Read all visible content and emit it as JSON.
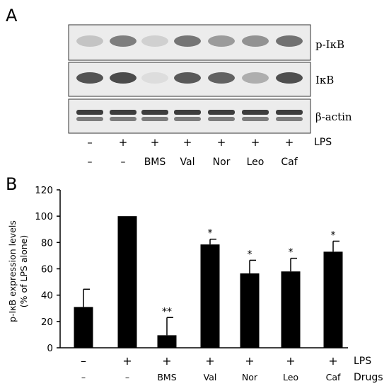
{
  "panel_a": {
    "label": "A",
    "blots": [
      {
        "name": "p-IκB",
        "bands": [
          0.18,
          0.55,
          0.12,
          0.6,
          0.4,
          0.45,
          0.62
        ]
      },
      {
        "name": "IκB",
        "bands": [
          0.78,
          0.82,
          0.05,
          0.75,
          0.7,
          0.3,
          0.8
        ]
      },
      {
        "name": "β-actin",
        "bands": [
          0.85,
          0.85,
          0.85,
          0.85,
          0.85,
          0.85,
          0.85
        ]
      }
    ],
    "lps_row": [
      "–",
      "+",
      "+",
      "+",
      "+",
      "+",
      "+"
    ],
    "drug_row": [
      "–",
      "–",
      "BMS",
      "Val",
      "Nor",
      "Leo",
      "Caf"
    ],
    "lps_label": "LPS"
  },
  "chart_data": {
    "type": "bar",
    "panel_label": "B",
    "title": "",
    "ylabel_line1": "p-IκB expression levels",
    "ylabel_line2": "(% of LPS alone)",
    "ylim": [
      0,
      120
    ],
    "yticks": [
      "0",
      "20",
      "40",
      "60",
      "80",
      "100",
      "120"
    ],
    "categories": [
      "–/–",
      "+/–",
      "+/BMS",
      "+/Val",
      "+/Nor",
      "+/Leo",
      "+/Caf"
    ],
    "values": [
      31,
      100,
      9.5,
      78.5,
      56.5,
      58,
      73
    ],
    "errors": [
      13.5,
      0,
      13.5,
      4,
      10,
      10,
      8
    ],
    "significance": [
      "",
      "",
      "**",
      "*",
      "*",
      "*",
      "*"
    ],
    "lps_row": [
      "–",
      "+",
      "+",
      "+",
      "+",
      "+",
      "+"
    ],
    "drug_row": [
      "–",
      "–",
      "BMS",
      "Val",
      "Nor",
      "Leo",
      "Caf"
    ],
    "lps_label": "LPS",
    "drugs_label": "Drugs",
    "colors": {
      "bar": "#000000"
    }
  }
}
